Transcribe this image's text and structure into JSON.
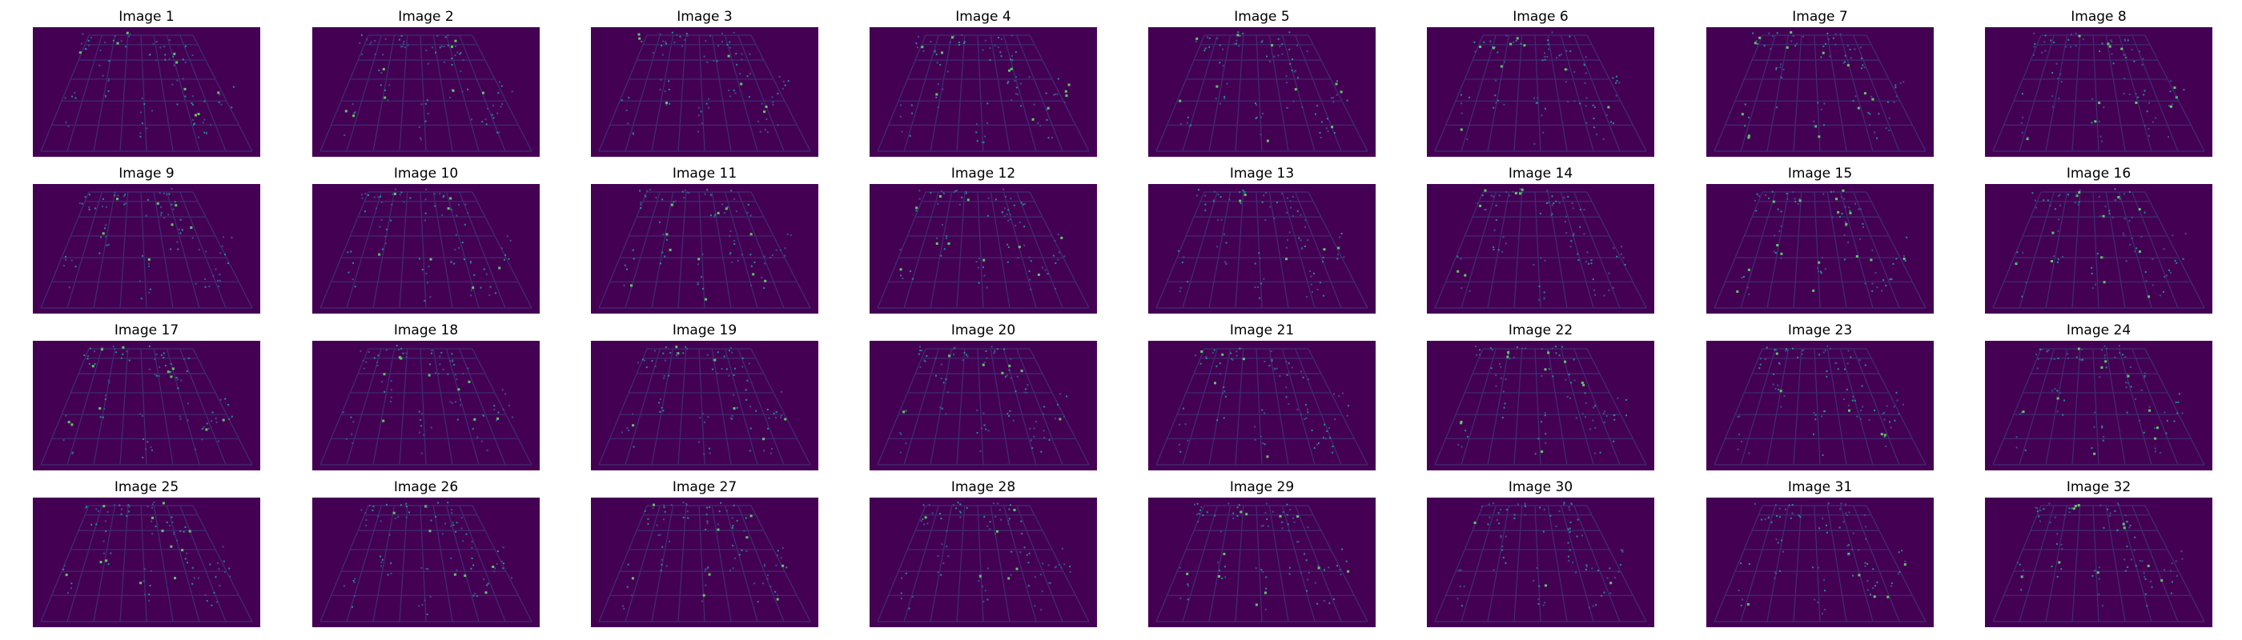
{
  "colors": {
    "background": "#440154",
    "dim": "#3b528b",
    "mid": "#21918c",
    "bright": "#5ec962",
    "peak": "#fde725"
  },
  "images": [
    {
      "title": "Image 1"
    },
    {
      "title": "Image 2"
    },
    {
      "title": "Image 3"
    },
    {
      "title": "Image 4"
    },
    {
      "title": "Image 5"
    },
    {
      "title": "Image 6"
    },
    {
      "title": "Image 7"
    },
    {
      "title": "Image 8"
    },
    {
      "title": "Image 9"
    },
    {
      "title": "Image 10"
    },
    {
      "title": "Image 11"
    },
    {
      "title": "Image 12"
    },
    {
      "title": "Image 13"
    },
    {
      "title": "Image 14"
    },
    {
      "title": "Image 15"
    },
    {
      "title": "Image 16"
    },
    {
      "title": "Image 17"
    },
    {
      "title": "Image 18"
    },
    {
      "title": "Image 19"
    },
    {
      "title": "Image 20"
    },
    {
      "title": "Image 21"
    },
    {
      "title": "Image 22"
    },
    {
      "title": "Image 23"
    },
    {
      "title": "Image 24"
    },
    {
      "title": "Image 25"
    },
    {
      "title": "Image 26"
    },
    {
      "title": "Image 27"
    },
    {
      "title": "Image 28"
    },
    {
      "title": "Image 29"
    },
    {
      "title": "Image 30"
    },
    {
      "title": "Image 31"
    },
    {
      "title": "Image 32"
    }
  ]
}
